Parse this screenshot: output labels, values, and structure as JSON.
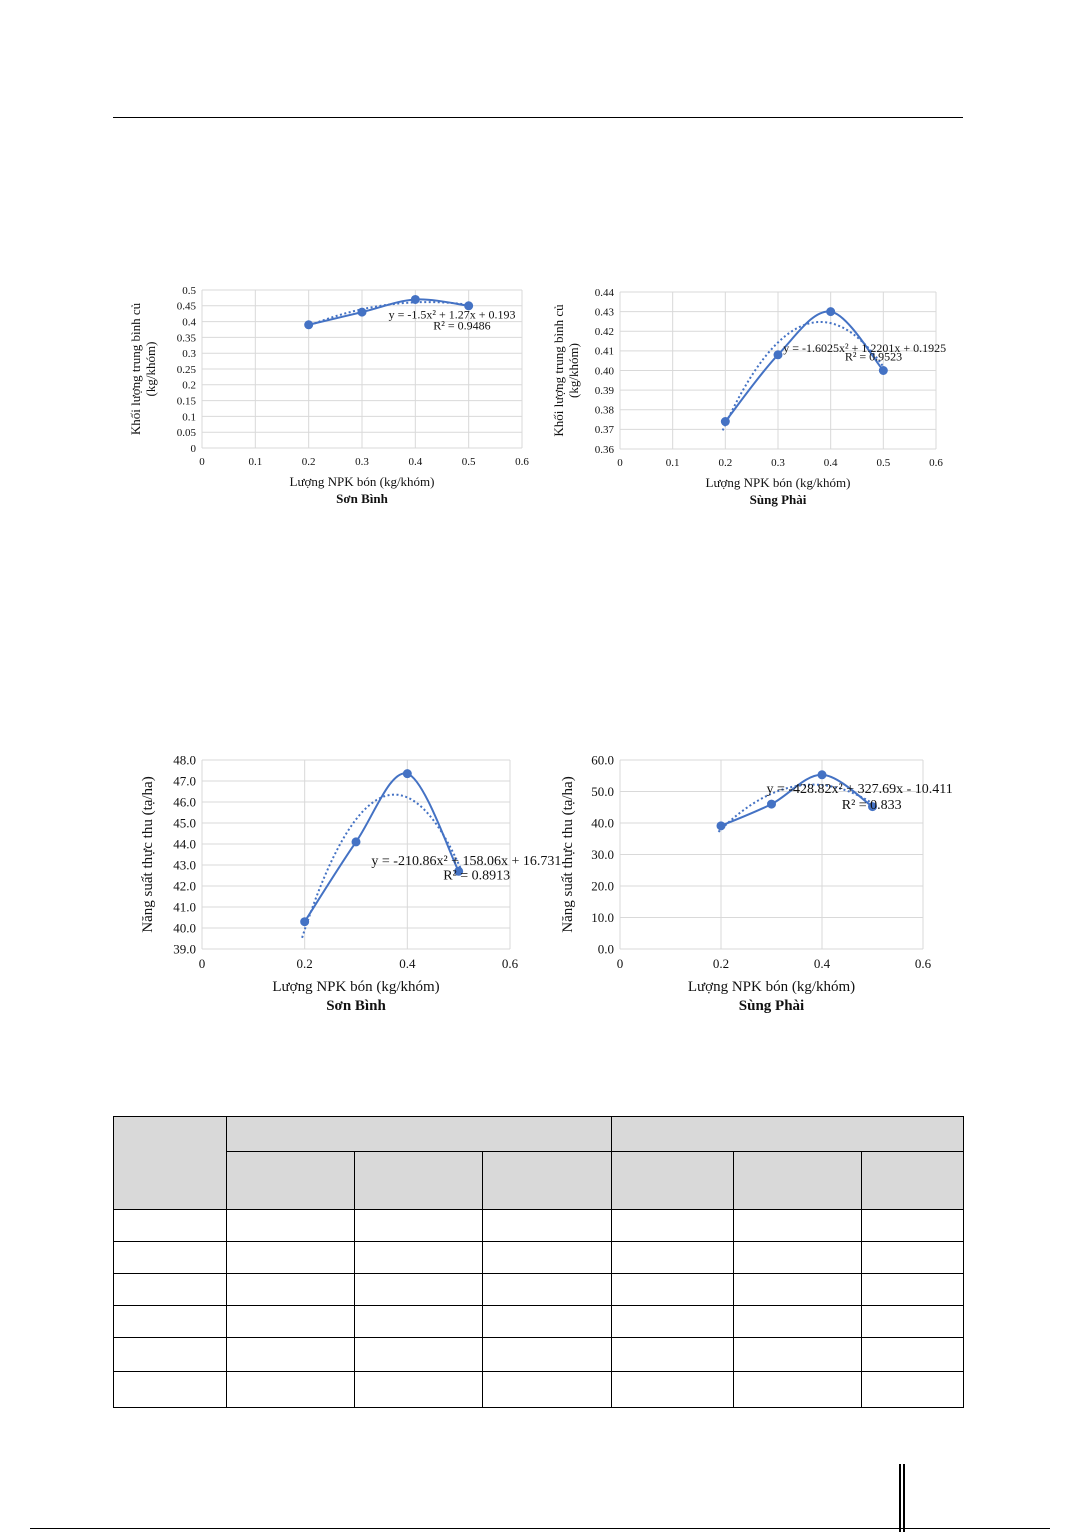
{
  "chart_data": [
    {
      "type": "scatter",
      "caption": "Sơn Bình",
      "xlabel": "Lượng NPK bón (kg/khóm)",
      "ylabel": "Khối lượng trung bình củ (kg/khóm)",
      "ylabel_lines": [
        "Khối lượng trung bình củ",
        "(kg/khóm)"
      ],
      "xlim": [
        0,
        0.6
      ],
      "ylim": [
        0,
        0.5
      ],
      "xticks": [
        "0",
        "0.1",
        "0.2",
        "0.3",
        "0.4",
        "0.5",
        "0.6"
      ],
      "yticks": [
        "0",
        "0.05",
        "0.1",
        "0.15",
        "0.2",
        "0.25",
        "0.3",
        "0.35",
        "0.4",
        "0.45",
        "0.5"
      ],
      "grid": true,
      "series": [
        {
          "x": [
            0.2,
            0.3,
            0.4,
            0.5
          ],
          "y": [
            0.39,
            0.43,
            0.47,
            0.45
          ]
        }
      ],
      "trendline": {
        "type": "polynomial-2",
        "a": -1.5,
        "b": 1.27,
        "c": 0.193
      },
      "equation": "y = -1.5x² + 1.27x + 0.193",
      "r2": "R² = 0.9486",
      "color": "#4472c4"
    },
    {
      "type": "scatter",
      "caption": "Sùng Phài",
      "xlabel": "Lượng NPK bón (kg/khóm)",
      "ylabel": "Khối lượng trung bình củ (kg/khóm)",
      "ylabel_lines": [
        "Khối lượng trung bình củ",
        "(kg/khóm)"
      ],
      "xlim": [
        0,
        0.6
      ],
      "ylim": [
        0.36,
        0.44
      ],
      "xticks": [
        "0",
        "0.1",
        "0.2",
        "0.3",
        "0.4",
        "0.5",
        "0.6"
      ],
      "yticks": [
        "0.36",
        "0.37",
        "0.38",
        "0.39",
        "0.40",
        "0.41",
        "0.42",
        "0.43",
        "0.44"
      ],
      "grid": true,
      "series": [
        {
          "x": [
            0.2,
            0.3,
            0.4,
            0.5
          ],
          "y": [
            0.374,
            0.408,
            0.43,
            0.4
          ]
        }
      ],
      "trendline": {
        "type": "polynomial-2",
        "a": -1.6025,
        "b": 1.2201,
        "c": 0.1925
      },
      "equation": "y = -1.6025x² + 1.2201x + 0.1925",
      "r2": "R² = 0.9523",
      "color": "#4472c4"
    },
    {
      "type": "scatter",
      "caption": "Sơn Bình",
      "xlabel": "Lượng NPK bón (kg/khóm)",
      "ylabel": "Năng suất thực thu (tạ/ha)",
      "ylabel_lines": [
        "Năng suất thực thu (tạ/ha)"
      ],
      "xlim": [
        0,
        0.6
      ],
      "ylim": [
        39,
        48
      ],
      "xticks": [
        "0",
        "0.2",
        "0.4",
        "0.6"
      ],
      "yticks": [
        "39.0",
        "40.0",
        "41.0",
        "42.0",
        "43.0",
        "44.0",
        "45.0",
        "46.0",
        "47.0",
        "48.0"
      ],
      "grid": true,
      "series": [
        {
          "x": [
            0.2,
            0.3,
            0.4,
            0.5
          ],
          "y": [
            40.3,
            44.1,
            47.35,
            42.7
          ]
        }
      ],
      "trendline": {
        "type": "polynomial-2",
        "a": -210.86,
        "b": 158.06,
        "c": 16.731
      },
      "equation": "y = -210.86x² + 158.06x + 16.731",
      "r2": "R² = 0.8913",
      "color": "#4472c4"
    },
    {
      "type": "scatter",
      "caption": "Sùng Phài",
      "xlabel": "Lượng NPK bón (kg/khóm)",
      "ylabel": "Năng suất thực thu (tạ/ha)",
      "ylabel_lines": [
        "Năng suất thực thu (tạ/ha)"
      ],
      "xlim": [
        0,
        0.6
      ],
      "ylim": [
        0,
        60
      ],
      "xticks": [
        "0",
        "0.2",
        "0.4",
        "0.6"
      ],
      "yticks": [
        "0.0",
        "10.0",
        "20.0",
        "30.0",
        "40.0",
        "50.0",
        "60.0"
      ],
      "grid": true,
      "series": [
        {
          "x": [
            0.2,
            0.3,
            0.4,
            0.5
          ],
          "y": [
            39.1,
            46.0,
            55.3,
            45.2
          ]
        }
      ],
      "trendline": {
        "type": "polynomial-2",
        "a": -428.82,
        "b": 327.69,
        "c": -10.411
      },
      "equation": "y = -428.82x² + 327.69x - 10.411",
      "r2": "R² = 0.833",
      "color": "#4472c4"
    }
  ],
  "table": {
    "header_fill": "#d9d9d9"
  }
}
